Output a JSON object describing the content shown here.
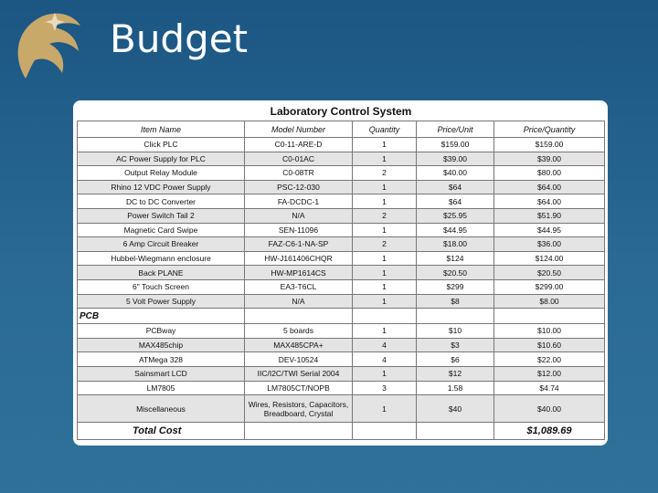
{
  "header": {
    "title": "Budget"
  },
  "table": {
    "title": "Laboratory Control System",
    "columns": [
      "Item Name",
      "Model Number",
      "Quantity",
      "Price/Unit",
      "Price/Quantity"
    ],
    "rows": [
      [
        "Click PLC",
        "C0-11-ARE-D",
        "1",
        "$159.00",
        "$159.00"
      ],
      [
        "AC Power Supply for PLC",
        "C0-01AC",
        "1",
        "$39.00",
        "$39.00"
      ],
      [
        "Output Relay Module",
        "C0-08TR",
        "2",
        "$40.00",
        "$80.00"
      ],
      [
        "Rhino 12 VDC Power Supply",
        "PSC-12-030",
        "1",
        "$64",
        "$64.00"
      ],
      [
        "DC to DC Converter",
        "FA-DCDC-1",
        "1",
        "$64",
        "$64.00"
      ],
      [
        "Power Switch Tail 2",
        "N/A",
        "2",
        "$25.95",
        "$51.90"
      ],
      [
        "Magnetic Card Swipe",
        "SEN-11096",
        "1",
        "$44.95",
        "$44.95"
      ],
      [
        "6 Amp Circuit Breaker",
        "FAZ-C6-1-NA-SP",
        "2",
        "$18.00",
        "$36.00"
      ],
      [
        "Hubbel-Wiegmann enclosure",
        "HW-J161406CHQR",
        "1",
        "$124",
        "$124.00"
      ],
      [
        "Back PLANE",
        "HW-MP1614CS",
        "1",
        "$20.50",
        "$20.50"
      ],
      [
        "6\" Touch Screen",
        "EA3-T6CL",
        "1",
        "$299",
        "$299.00"
      ],
      [
        "5 Volt Power Supply",
        "N/A",
        "1",
        "$8",
        "$8.00"
      ]
    ],
    "section": {
      "title": "PCB",
      "rows": [
        [
          "PCBway",
          "5 boards",
          "1",
          "$10",
          "$10.00"
        ],
        [
          "MAX485chip",
          "MAX485CPA+",
          "4",
          "$3",
          "$10.60"
        ],
        [
          "ATMega 328",
          "DEV-10524",
          "4",
          "$6",
          "$22.00"
        ],
        [
          "Sainsmart LCD",
          "IIC/I2C/TWI Serial 2004",
          "1",
          "$12",
          "$12.00"
        ],
        [
          "LM7805",
          "LM7805CT/NOPB",
          "3",
          "1.58",
          "$4.74"
        ],
        [
          "Miscellaneous",
          "Wires, Resistors, Capacitors, Breadboard, Crystal",
          "1",
          "$40",
          "$40.00"
        ]
      ]
    },
    "total": {
      "label": "Total Cost",
      "value": "$1,089.69"
    }
  }
}
